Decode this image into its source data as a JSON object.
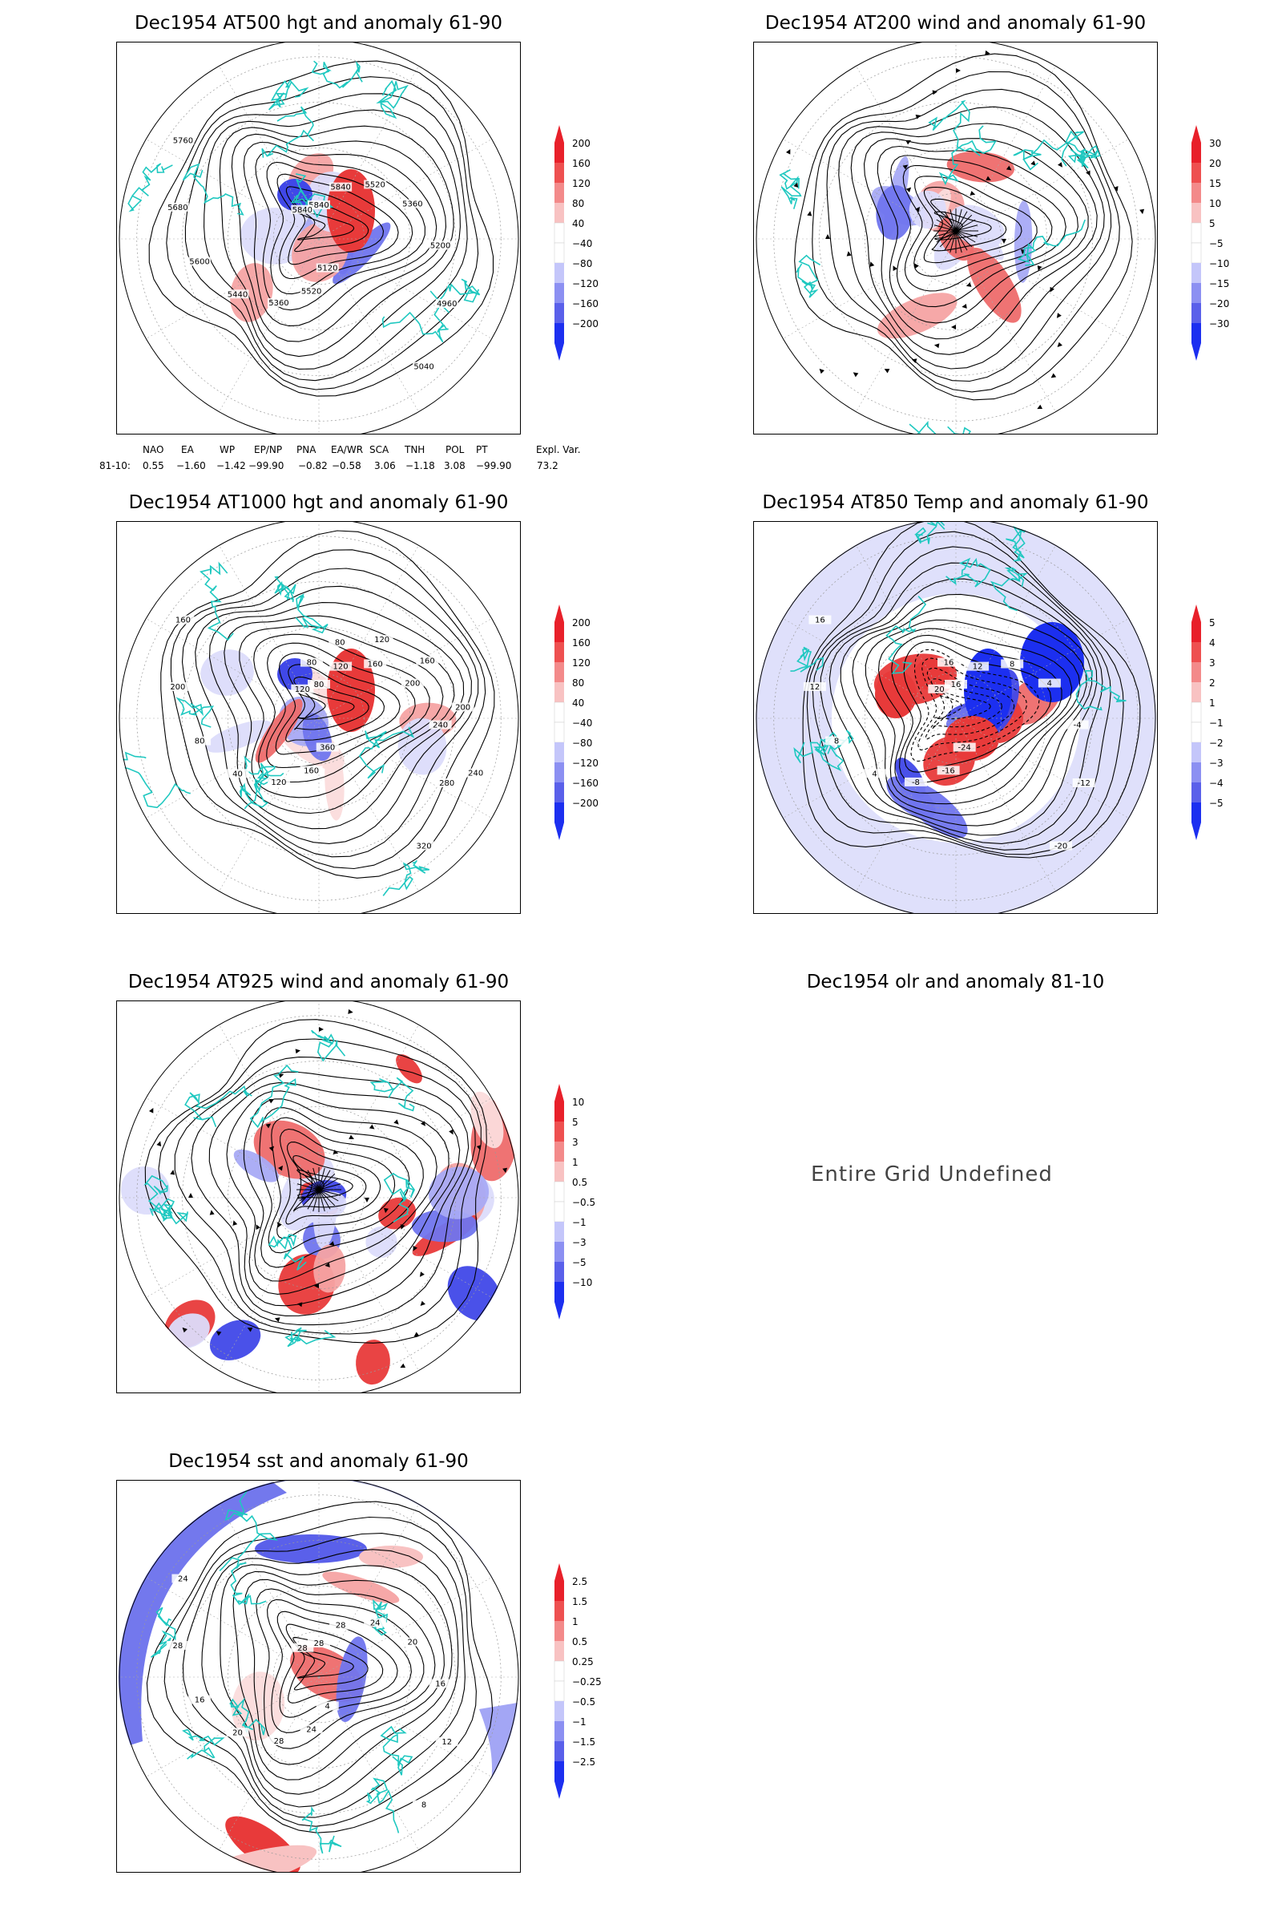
{
  "panels": [
    {
      "key": "p1",
      "title": "Dec1954 AT500 hgt and anomaly 61-90",
      "contour_labels": [
        "5840",
        "5840",
        "5520",
        "5360",
        "5200",
        "4960",
        "5040",
        "5120",
        "5520",
        "5360",
        "5440",
        "5600",
        "5680",
        "5760",
        "5840"
      ],
      "colorbar": [
        "200",
        "160",
        "120",
        "80",
        "40",
        "−40",
        "−80",
        "−120",
        "−160",
        "−200"
      ]
    },
    {
      "key": "p2",
      "title": "Dec1954 AT200 wind and anomaly 61-90",
      "colorbar": [
        "30",
        "20",
        "15",
        "10",
        "5",
        "−5",
        "−10",
        "−15",
        "−20",
        "−30"
      ]
    },
    {
      "key": "p3",
      "title": "Dec1954 AT1000 hgt and anomaly 61-90",
      "contour_labels": [
        "80",
        "120",
        "160",
        "200",
        "240",
        "280",
        "320",
        "360",
        "160",
        "120",
        "40",
        "80",
        "200",
        "160",
        "120",
        "80",
        "80",
        "120",
        "160",
        "200",
        "240"
      ],
      "colorbar": [
        "200",
        "160",
        "120",
        "80",
        "40",
        "−40",
        "−80",
        "−120",
        "−160",
        "−200"
      ]
    },
    {
      "key": "p4",
      "title": "Dec1954 AT850 Temp and anomaly 61-90",
      "contour_labels": [
        "16",
        "12",
        "8",
        "4",
        "-4",
        "-12",
        "-20",
        "-24",
        "-16",
        "-8",
        "4",
        "8",
        "12",
        "16",
        "20",
        "16"
      ],
      "colorbar": [
        "5",
        "4",
        "3",
        "2",
        "1",
        "−1",
        "−2",
        "−3",
        "−4",
        "−5"
      ]
    },
    {
      "key": "p5",
      "title": "Dec1954 AT925 wind and anomaly 61-90",
      "colorbar": [
        "10",
        "5",
        "3",
        "1",
        "0.5",
        "−0.5",
        "−1",
        "−3",
        "−5",
        "−10"
      ]
    },
    {
      "key": "p6",
      "title": "Dec1954 olr and anomaly 81-10",
      "undefined_text": "Entire Grid Undefined"
    },
    {
      "key": "p7",
      "title": "Dec1954 sst and anomaly 61-90",
      "contour_labels": [
        "28",
        "28",
        "24",
        "20",
        "16",
        "12",
        "8",
        "4",
        "24",
        "28",
        "20",
        "16",
        "28",
        "24",
        "28"
      ],
      "colorbar": [
        "2.5",
        "1.5",
        "1",
        "0.5",
        "0.25",
        "−0.25",
        "−0.5",
        "−1",
        "−1.5",
        "−2.5"
      ]
    }
  ],
  "indices": {
    "header": [
      "NAO",
      "EA",
      "WP",
      "EP/NP",
      "PNA",
      "EA/WR",
      "SCA",
      "TNH",
      "POL",
      "PT",
      "Expl. Var."
    ],
    "row_label": "81-10:",
    "values": [
      "0.55",
      "−1.60",
      "−1.42",
      "−99.90",
      "−0.82",
      "−0.58",
      "3.06",
      "−1.18",
      "3.08",
      "−99.90",
      "73.2"
    ]
  },
  "colors": {
    "positive": "#e8202a",
    "negative": "#1c2ff0",
    "land": "#1fc8c0",
    "contour": "#000000"
  }
}
